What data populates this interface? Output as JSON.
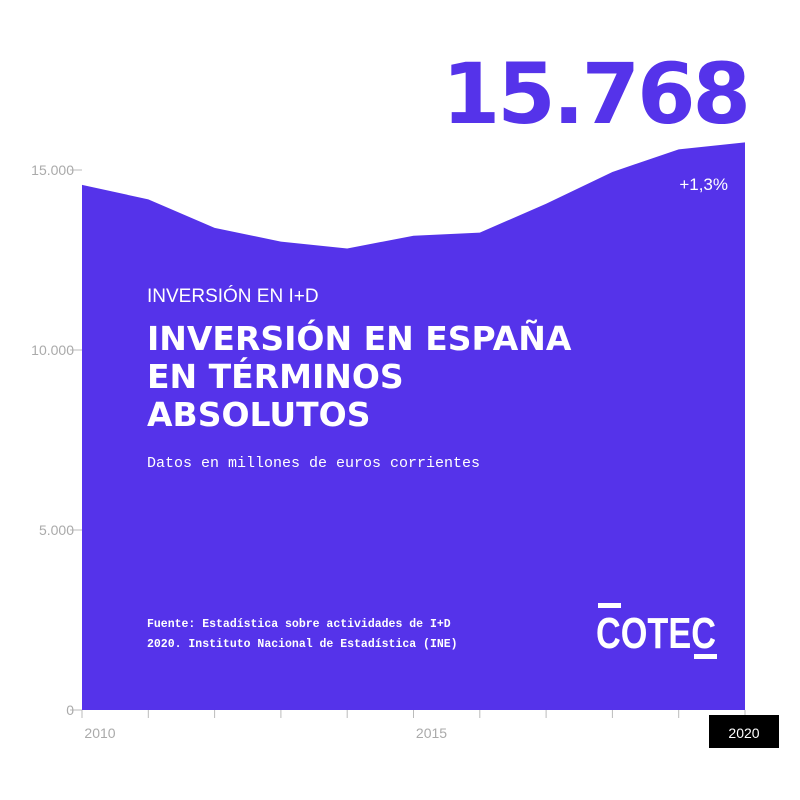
{
  "chart_data": {
    "type": "area",
    "kicker": "INVERSIÓN EN I+D",
    "title_lines": [
      "INVERSIÓN EN ESPAÑA",
      "EN TÉRMINOS",
      "ABSOLUTOS"
    ],
    "subtitle": "Datos en millones de euros corrientes",
    "source_lines": [
      "Fuente: Estadística sobre actividades de I+D",
      "2020. Instituto Nacional de Estadística (INE)"
    ],
    "logo": "COTEC",
    "annotation": "+1,3%",
    "x": [
      2010,
      2011,
      2012,
      2013,
      2014,
      2015,
      2016,
      2017,
      2018,
      2019,
      2020
    ],
    "values": [
      14588,
      14184,
      13392,
      13012,
      12821,
      13172,
      13260,
      14063,
      14946,
      15572,
      15768
    ],
    "value_labels": [
      null,
      null,
      null,
      null,
      null,
      null,
      null,
      null,
      null,
      null,
      "15.768"
    ],
    "color": "#5533ea",
    "xlim": [
      2010,
      2020
    ],
    "xticks": [
      2010,
      2015,
      2020
    ],
    "ylim": [
      0,
      15000
    ],
    "yticks": [
      0,
      {
        "value": 5000,
        "label": "5.000"
      },
      {
        "value": 10000,
        "label": "10.000"
      },
      {
        "value": 15000,
        "label": "15.000"
      }
    ]
  }
}
